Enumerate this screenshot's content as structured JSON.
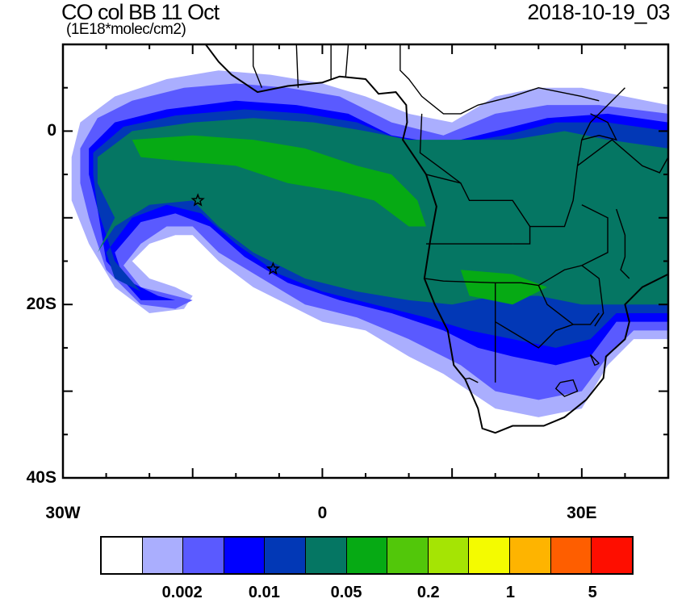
{
  "title": "CO col BB 11 Oct",
  "units": "(1E18*molec/cm2)",
  "timestamp": "2018-10-19_03",
  "chart_data": {
    "type": "contour-map",
    "lon_range": [
      -30,
      40
    ],
    "lat_range": [
      -40,
      10
    ],
    "x_ticks": [
      {
        "value": -30,
        "label": "30W"
      },
      {
        "value": 0,
        "label": "0"
      },
      {
        "value": 30,
        "label": "30E"
      }
    ],
    "y_ticks": [
      {
        "value": 0,
        "label": "0"
      },
      {
        "value": -20,
        "label": "20S"
      },
      {
        "value": -40,
        "label": "40S"
      }
    ],
    "colorbar": {
      "colors": [
        "#ffffff",
        "#aaaefe",
        "#5a5aff",
        "#0000ff",
        "#0238b6",
        "#057663",
        "#06aa14",
        "#52c70a",
        "#a5e404",
        "#f4fb00",
        "#feb400",
        "#fe5e00",
        "#fe0e00"
      ],
      "labels": [
        {
          "after_box": 2,
          "text": "0.002"
        },
        {
          "after_box": 4,
          "text": "0.01"
        },
        {
          "after_box": 6,
          "text": "0.05"
        },
        {
          "after_box": 8,
          "text": "0.2"
        },
        {
          "after_box": 10,
          "text": "1"
        },
        {
          "after_box": 12,
          "text": "5"
        }
      ]
    },
    "contour_regions": [
      {
        "level": 1,
        "points": [
          [
            -29,
            -3
          ],
          [
            -28,
            1
          ],
          [
            -24,
            4
          ],
          [
            -18,
            6
          ],
          [
            -12,
            7
          ],
          [
            -6,
            6.5
          ],
          [
            0,
            5.5
          ],
          [
            5,
            4
          ],
          [
            10,
            2
          ],
          [
            15,
            1
          ],
          [
            20,
            4
          ],
          [
            25,
            5
          ],
          [
            30,
            5
          ],
          [
            35,
            4
          ],
          [
            40,
            3
          ],
          [
            40,
            -24
          ],
          [
            36,
            -24
          ],
          [
            33,
            -27
          ],
          [
            30,
            -32
          ],
          [
            25,
            -33
          ],
          [
            20,
            -32
          ],
          [
            17,
            -30
          ],
          [
            14,
            -28
          ],
          [
            10,
            -26
          ],
          [
            5,
            -23
          ],
          [
            0,
            -22
          ],
          [
            -4,
            -20
          ],
          [
            -8,
            -18
          ],
          [
            -12,
            -15
          ],
          [
            -15,
            -12
          ],
          [
            -17,
            -12
          ],
          [
            -20,
            -13
          ],
          [
            -22,
            -15
          ],
          [
            -20,
            -17
          ],
          [
            -17,
            -18
          ],
          [
            -15,
            -19
          ],
          [
            -16,
            -20.5
          ],
          [
            -20,
            -21
          ],
          [
            -24,
            -18
          ],
          [
            -27,
            -13
          ],
          [
            -29,
            -8
          ]
        ]
      },
      {
        "level": 2,
        "points": [
          [
            -28,
            -2
          ],
          [
            -26,
            1.5
          ],
          [
            -22,
            3.5
          ],
          [
            -16,
            5
          ],
          [
            -10,
            5.5
          ],
          [
            -4,
            5
          ],
          [
            2,
            4
          ],
          [
            8,
            1
          ],
          [
            14,
            -0.5
          ],
          [
            20,
            2
          ],
          [
            26,
            3
          ],
          [
            32,
            3
          ],
          [
            40,
            2
          ],
          [
            40,
            -23
          ],
          [
            36,
            -23
          ],
          [
            33,
            -26
          ],
          [
            30,
            -30
          ],
          [
            25,
            -31
          ],
          [
            20,
            -30
          ],
          [
            16,
            -27
          ],
          [
            10,
            -24
          ],
          [
            4,
            -21.5
          ],
          [
            -2,
            -20
          ],
          [
            -7,
            -17
          ],
          [
            -12,
            -14
          ],
          [
            -15,
            -11
          ],
          [
            -18,
            -11
          ],
          [
            -21,
            -13
          ],
          [
            -23,
            -15.5
          ],
          [
            -21,
            -18
          ],
          [
            -17,
            -19
          ],
          [
            -15,
            -19.5
          ],
          [
            -17,
            -20.5
          ],
          [
            -21,
            -20
          ],
          [
            -25,
            -16
          ],
          [
            -27,
            -10
          ],
          [
            -28,
            -6
          ]
        ]
      },
      {
        "level": 3,
        "points": [
          [
            -27,
            -2
          ],
          [
            -24,
            1
          ],
          [
            -18,
            2.5
          ],
          [
            -10,
            3.5
          ],
          [
            -3,
            3
          ],
          [
            3,
            2
          ],
          [
            8,
            -0.5
          ],
          [
            14,
            -1.5
          ],
          [
            20,
            0
          ],
          [
            26,
            1.5
          ],
          [
            33,
            2
          ],
          [
            40,
            1
          ],
          [
            40,
            -22
          ],
          [
            34,
            -22
          ],
          [
            31,
            -26
          ],
          [
            27,
            -27
          ],
          [
            22,
            -26
          ],
          [
            18,
            -25
          ],
          [
            14,
            -23
          ],
          [
            8,
            -21
          ],
          [
            2,
            -19.5
          ],
          [
            -4,
            -17.5
          ],
          [
            -9,
            -14.5
          ],
          [
            -13,
            -11
          ],
          [
            -17,
            -9.5
          ],
          [
            -21,
            -10.5
          ],
          [
            -24,
            -14
          ],
          [
            -23,
            -17
          ],
          [
            -19,
            -19
          ],
          [
            -17,
            -19.5
          ],
          [
            -21,
            -19.5
          ],
          [
            -25,
            -15
          ],
          [
            -26,
            -9
          ],
          [
            -27,
            -5
          ]
        ]
      },
      {
        "level": 4,
        "points": [
          [
            -26.5,
            -2.5
          ],
          [
            -23,
            0.5
          ],
          [
            -17,
            1.8
          ],
          [
            -9,
            2.5
          ],
          [
            -2,
            2
          ],
          [
            4,
            1
          ],
          [
            9,
            -1
          ],
          [
            15,
            -1.5
          ],
          [
            21,
            -0.5
          ],
          [
            27,
            1
          ],
          [
            33,
            1
          ],
          [
            40,
            0
          ],
          [
            40,
            -21
          ],
          [
            34,
            -21
          ],
          [
            31,
            -24
          ],
          [
            27,
            -25
          ],
          [
            22,
            -24
          ],
          [
            17,
            -23
          ],
          [
            12,
            -21.5
          ],
          [
            6,
            -20
          ],
          [
            0,
            -18.5
          ],
          [
            -5,
            -16.5
          ],
          [
            -10,
            -13
          ],
          [
            -14,
            -9.5
          ],
          [
            -18,
            -8.5
          ],
          [
            -22,
            -10
          ],
          [
            -25,
            -14
          ],
          [
            -24,
            -17
          ],
          [
            -21,
            -18.5
          ],
          [
            -24,
            -15
          ],
          [
            -26,
            -9
          ],
          [
            -26.5,
            -5
          ]
        ]
      },
      {
        "level": 5,
        "points": [
          [
            -26,
            -3
          ],
          [
            -22,
            0
          ],
          [
            -15,
            1
          ],
          [
            -8,
            1.5
          ],
          [
            -1,
            1
          ],
          [
            5,
            0
          ],
          [
            10,
            -1
          ],
          [
            16,
            -1
          ],
          [
            22,
            -1
          ],
          [
            28,
            0
          ],
          [
            33,
            -1
          ],
          [
            40,
            -2
          ],
          [
            40,
            -20
          ],
          [
            34,
            -20
          ],
          [
            30,
            -20
          ],
          [
            25,
            -19
          ],
          [
            20,
            -19
          ],
          [
            15,
            -20
          ],
          [
            10,
            -19.5
          ],
          [
            4,
            -18.5
          ],
          [
            -2,
            -17
          ],
          [
            -8,
            -14
          ],
          [
            -12,
            -11
          ],
          [
            -15,
            -8
          ],
          [
            -20,
            -8.5
          ],
          [
            -24,
            -11
          ],
          [
            -26,
            -14
          ],
          [
            -24,
            -10
          ],
          [
            -26,
            -6
          ]
        ]
      },
      {
        "level": 6,
        "points": [
          [
            -22,
            -1
          ],
          [
            -15,
            -0.5
          ],
          [
            -8,
            -1
          ],
          [
            -2,
            -2
          ],
          [
            4,
            -4
          ],
          [
            8,
            -5
          ],
          [
            11,
            -8
          ],
          [
            12,
            -11
          ],
          [
            10,
            -11
          ],
          [
            6,
            -8
          ],
          [
            2,
            -7
          ],
          [
            -4,
            -6
          ],
          [
            -10,
            -4
          ],
          [
            -16,
            -3.5
          ],
          [
            -21,
            -3
          ]
        ]
      },
      {
        "level": 6,
        "points": [
          [
            16,
            -16
          ],
          [
            22,
            -16.5
          ],
          [
            26,
            -18
          ],
          [
            22,
            -20
          ],
          [
            17,
            -19
          ]
        ]
      }
    ],
    "markers": [
      {
        "type": "star",
        "lon": -14.4,
        "lat": -8
      },
      {
        "type": "star",
        "lon": -5.7,
        "lat": -15.9
      }
    ]
  }
}
